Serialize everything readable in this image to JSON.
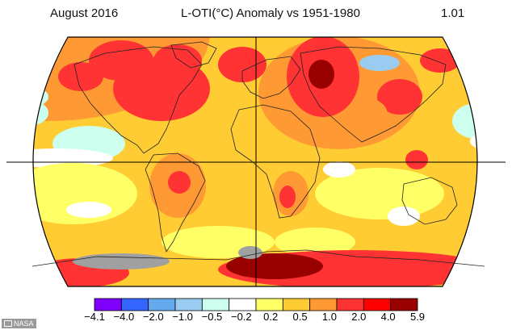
{
  "header": {
    "left": "August 2016",
    "center": "L-OTI(°C) Anomaly vs 1951-1980",
    "right": "1.01"
  },
  "legend": {
    "colors": [
      "#7f00ff",
      "#3366ff",
      "#66aaee",
      "#99ccf0",
      "#ccffee",
      "#ffffff",
      "#ffff66",
      "#ffcc33",
      "#ff9933",
      "#ff3333",
      "#ff0000",
      "#990000"
    ],
    "tick_labels": [
      "−4.1",
      "−4.0",
      "−2.0",
      "−1.0",
      "−0.5",
      "−0.2",
      "0.2",
      "0.5",
      "1.0",
      "2.0",
      "4.0",
      "5.9"
    ]
  },
  "palette": {
    "base": "#ffcc33",
    "warm": "#ff9933",
    "hot": "#ff3333",
    "extreme": "#990000",
    "mild": "#ffff66",
    "neutral": "#ffffff",
    "cool": "#ccffee",
    "cold": "#99ccf0",
    "no_data": "#a0a0a0"
  },
  "credit": "NASA"
}
